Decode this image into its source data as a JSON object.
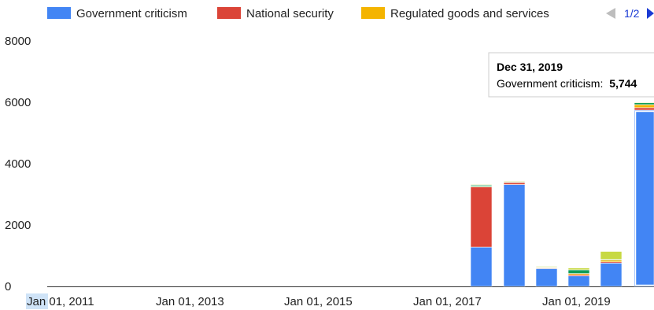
{
  "legend": {
    "items": [
      {
        "label": "Government criticism",
        "color": "#4285f4"
      },
      {
        "label": "National security",
        "color": "#db4437"
      },
      {
        "label": "Regulated goods and services",
        "color": "#f4b400"
      }
    ],
    "page": "1/2",
    "prev_icon": "triangle-left-icon",
    "next_icon": "triangle-right-icon"
  },
  "tooltip": {
    "date": "Dec 31, 2019",
    "label": "Government criticism:",
    "value": "5,744"
  },
  "chart_data": {
    "type": "bar",
    "stacked": true,
    "ylim": [
      0,
      8000
    ],
    "yticks": [
      "0",
      "2000",
      "4000",
      "6000",
      "8000"
    ],
    "xticks": [
      "Jan 01, 2011",
      "Jan 01, 2013",
      "Jan 01, 2015",
      "Jan 01, 2017",
      "Jan 01, 2019"
    ],
    "grid": false,
    "legend_position": "top",
    "categories": [
      "Jun 30, 2017",
      "Dec 31, 2017",
      "Jun 30, 2018",
      "Dec 31, 2018",
      "Jun 30, 2019",
      "Dec 31, 2019"
    ],
    "series": [
      {
        "name": "Government criticism",
        "color": "#4285f4",
        "values": [
          1280,
          3320,
          580,
          340,
          760,
          5744
        ]
      },
      {
        "name": "National security",
        "color": "#db4437",
        "values": [
          1960,
          60,
          20,
          40,
          40,
          80
        ]
      },
      {
        "name": "Regulated goods and services",
        "color": "#f4b400",
        "values": [
          20,
          20,
          20,
          40,
          60,
          100
        ]
      },
      {
        "color": "#0f9d58",
        "values": [
          40,
          20,
          20,
          120,
          20,
          60
        ]
      },
      {
        "color": "#c7d943",
        "values": [
          20,
          20,
          20,
          60,
          260,
          20
        ]
      }
    ],
    "highlight_index": 5
  }
}
